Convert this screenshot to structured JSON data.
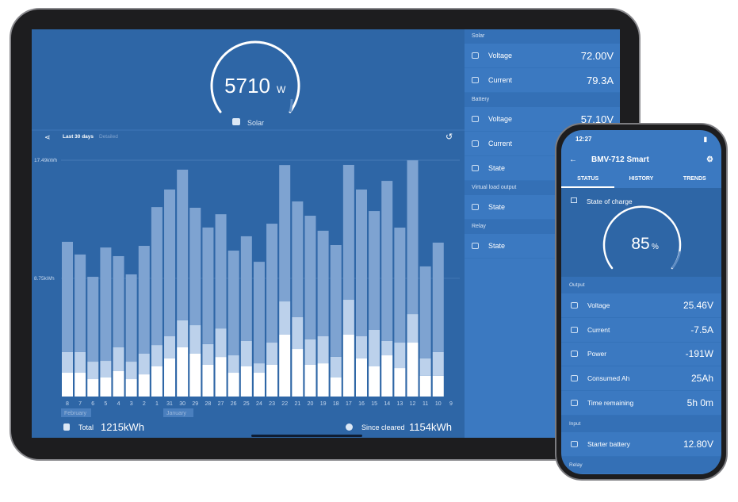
{
  "tablet": {
    "gauge": {
      "value": "5710",
      "unit": "W",
      "label": "Solar"
    },
    "tabs": [
      "Last 30 days",
      "Detailed"
    ],
    "footer": {
      "total_label": "Total",
      "total_value": "1215kWh",
      "since_label": "Since cleared",
      "since_value": "1154kWh"
    },
    "sections": [
      {
        "title": "Solar",
        "rows": [
          {
            "label": "Voltage",
            "value": "72.00V"
          },
          {
            "label": "Current",
            "value": "79.3A"
          }
        ]
      },
      {
        "title": "Battery",
        "rows": [
          {
            "label": "Voltage",
            "value": "57.10V"
          },
          {
            "label": "Current"
          },
          {
            "label": "State"
          }
        ]
      },
      {
        "title": "Virtual load output",
        "rows": [
          {
            "label": "State"
          }
        ]
      },
      {
        "title": "Relay",
        "rows": [
          {
            "label": "State"
          }
        ]
      }
    ]
  },
  "chart_data": {
    "type": "stacked-bar",
    "categories": [
      "8",
      "7",
      "6",
      "5",
      "4",
      "3",
      "2",
      "1",
      "31",
      "30",
      "29",
      "28",
      "27",
      "26",
      "25",
      "24",
      "23",
      "22",
      "21",
      "20",
      "19",
      "18",
      "17",
      "16",
      "15",
      "14",
      "13",
      "12",
      "11",
      "10",
      "9"
    ],
    "month_labels": [
      "February",
      "January"
    ],
    "series": [
      {
        "color": "#ffffff",
        "values": [
          1.76,
          1.76,
          1.29,
          1.41,
          1.88,
          1.29,
          1.64,
          2.23,
          2.82,
          3.64,
          3.17,
          2.35,
          2.93,
          1.76,
          2.23,
          1.76,
          2.35,
          4.58,
          3.52,
          2.35,
          2.46,
          1.41,
          4.58,
          2.82,
          2.23,
          3.05,
          2.11,
          3.99,
          1.53,
          1.53,
          null
        ]
      },
      {
        "color": "#bcd1eb",
        "values": [
          1.53,
          1.53,
          1.29,
          1.23,
          1.76,
          1.29,
          1.53,
          1.58,
          1.64,
          2.0,
          2.11,
          1.53,
          2.11,
          1.29,
          1.88,
          0.7,
          1.64,
          2.46,
          2.35,
          1.88,
          2.0,
          1.53,
          2.58,
          1.64,
          2.7,
          1.06,
          1.88,
          2.11,
          1.29,
          1.76,
          null
        ]
      },
      {
        "color": "#7ea3d1",
        "values": [
          8.16,
          7.22,
          6.28,
          8.39,
          6.75,
          6.46,
          7.98,
          10.21,
          10.86,
          11.15,
          8.69,
          8.63,
          8.45,
          7.75,
          7.75,
          7.51,
          8.8,
          10.09,
          8.57,
          9.15,
          7.81,
          8.27,
          9.98,
          10.86,
          8.8,
          11.85,
          8.51,
          11.38,
          6.81,
          8.1,
          null
        ]
      }
    ],
    "ylim": [
      0,
      17.49
    ],
    "yticks": [
      {
        "value": 8.75,
        "label": "8.75kWh"
      },
      {
        "value": 17.49,
        "label": "17.49kWh"
      }
    ],
    "grid": true
  },
  "phone": {
    "time": "12:27",
    "title": "BMV-712 Smart",
    "tabs": [
      "STATUS",
      "HISTORY",
      "TRENDS"
    ],
    "soc": {
      "label": "State of charge",
      "value": "85",
      "unit": "%"
    },
    "output": {
      "title": "Output",
      "rows": [
        {
          "label": "Voltage",
          "value": "25.46V"
        },
        {
          "label": "Current",
          "value": "-7.5A"
        },
        {
          "label": "Power",
          "value": "-191W"
        },
        {
          "label": "Consumed Ah",
          "value": "25Ah"
        },
        {
          "label": "Time remaining",
          "value": "5h 0m"
        }
      ]
    },
    "input": {
      "title": "Input",
      "rows": [
        {
          "label": "Starter battery",
          "value": "12.80V"
        }
      ]
    },
    "relay": {
      "title": "Relay"
    }
  }
}
